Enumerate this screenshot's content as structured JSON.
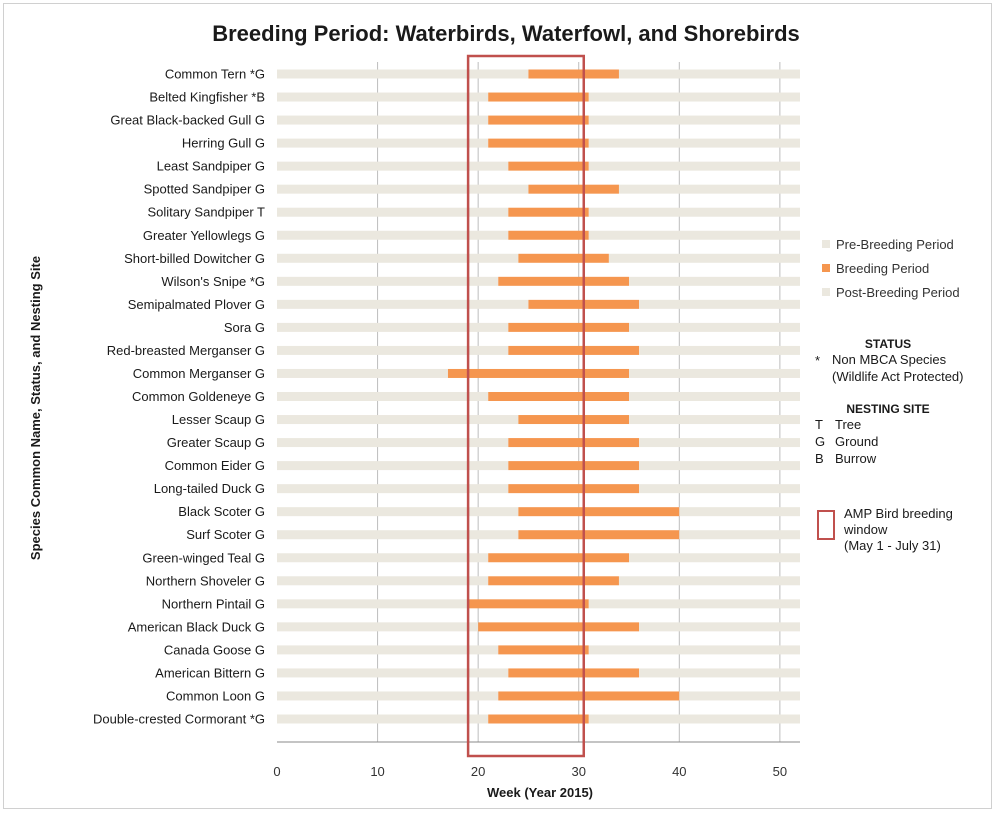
{
  "chart_data": {
    "type": "bar",
    "orientation": "horizontal-stacked",
    "title": "Breeding Period: Waterbirds, Waterfowl, and Shorebirds",
    "xlabel": "Week (Year 2015)",
    "ylabel": "Species Common Name, Status, and Nesting Site",
    "xlim": [
      0,
      52
    ],
    "xticks": [
      0,
      10,
      20,
      30,
      40,
      50
    ],
    "grid": "vertical",
    "legend_position": "right",
    "categories": [
      "Common Tern *G",
      "Belted Kingfisher *B",
      "Great Black-backed Gull G",
      "Herring Gull G",
      "Least Sandpiper G",
      "Spotted Sandpiper G",
      "Solitary Sandpiper T",
      "Greater Yellowlegs G",
      "Short-billed Dowitcher G",
      "Wilson's Snipe *G",
      "Semipalmated Plover G",
      "Sora G",
      "Red-breasted Merganser G",
      "Common Merganser G",
      "Common Goldeneye G",
      "Lesser Scaup G",
      "Greater Scaup G",
      "Common Eider G",
      "Long-tailed Duck G",
      "Black Scoter G",
      "Surf Scoter G",
      "Green-winged Teal G",
      "Northern Shoveler G",
      "Northern Pintail G",
      "American Black Duck G",
      "Canada Goose G",
      "American Bittern G",
      "Common Loon G",
      "Double-crested Cormorant *G"
    ],
    "series": [
      {
        "name": "Pre-Breeding Period",
        "color": "#ebe8df",
        "values": [
          25,
          21,
          21,
          21,
          23,
          25,
          23,
          23,
          24,
          22,
          25,
          23,
          23,
          17,
          21,
          24,
          23,
          23,
          23,
          24,
          24,
          21,
          21,
          19,
          20,
          22,
          23,
          22,
          21
        ]
      },
      {
        "name": "Breeding Period",
        "color": "#f5964f",
        "values": [
          9,
          10,
          10,
          10,
          8,
          9,
          8,
          8,
          9,
          13,
          11,
          12,
          13,
          18,
          14,
          11,
          13,
          13,
          13,
          16,
          16,
          14,
          13,
          12,
          16,
          9,
          13,
          18,
          10
        ]
      },
      {
        "name": "Post-Breeding Period",
        "color": "#ebe8df",
        "values": [
          18,
          21,
          21,
          21,
          21,
          18,
          21,
          21,
          19,
          17,
          16,
          17,
          16,
          17,
          17,
          17,
          16,
          16,
          16,
          12,
          12,
          17,
          18,
          21,
          16,
          21,
          16,
          12,
          21
        ]
      }
    ],
    "highlight_window": {
      "x_start": 19,
      "x_end": 30.5,
      "color": "#c0504d"
    }
  },
  "legend": {
    "items": [
      "Pre-Breeding Period",
      "Breeding Period",
      "Post-Breeding Period"
    ]
  },
  "status_key": {
    "heading": "STATUS",
    "symbol": "*",
    "line1": "Non MBCA Species",
    "line2": "(Wildlife Act Protected)"
  },
  "nesting_key": {
    "heading": "NESTING SITE",
    "items": [
      {
        "code": "T",
        "label": "Tree"
      },
      {
        "code": "G",
        "label": "Ground"
      },
      {
        "code": "B",
        "label": "Burrow"
      }
    ]
  },
  "amp_key": {
    "line1": "AMP Bird breeding",
    "line2": "window",
    "line3": "(May 1 -  July 31)"
  }
}
